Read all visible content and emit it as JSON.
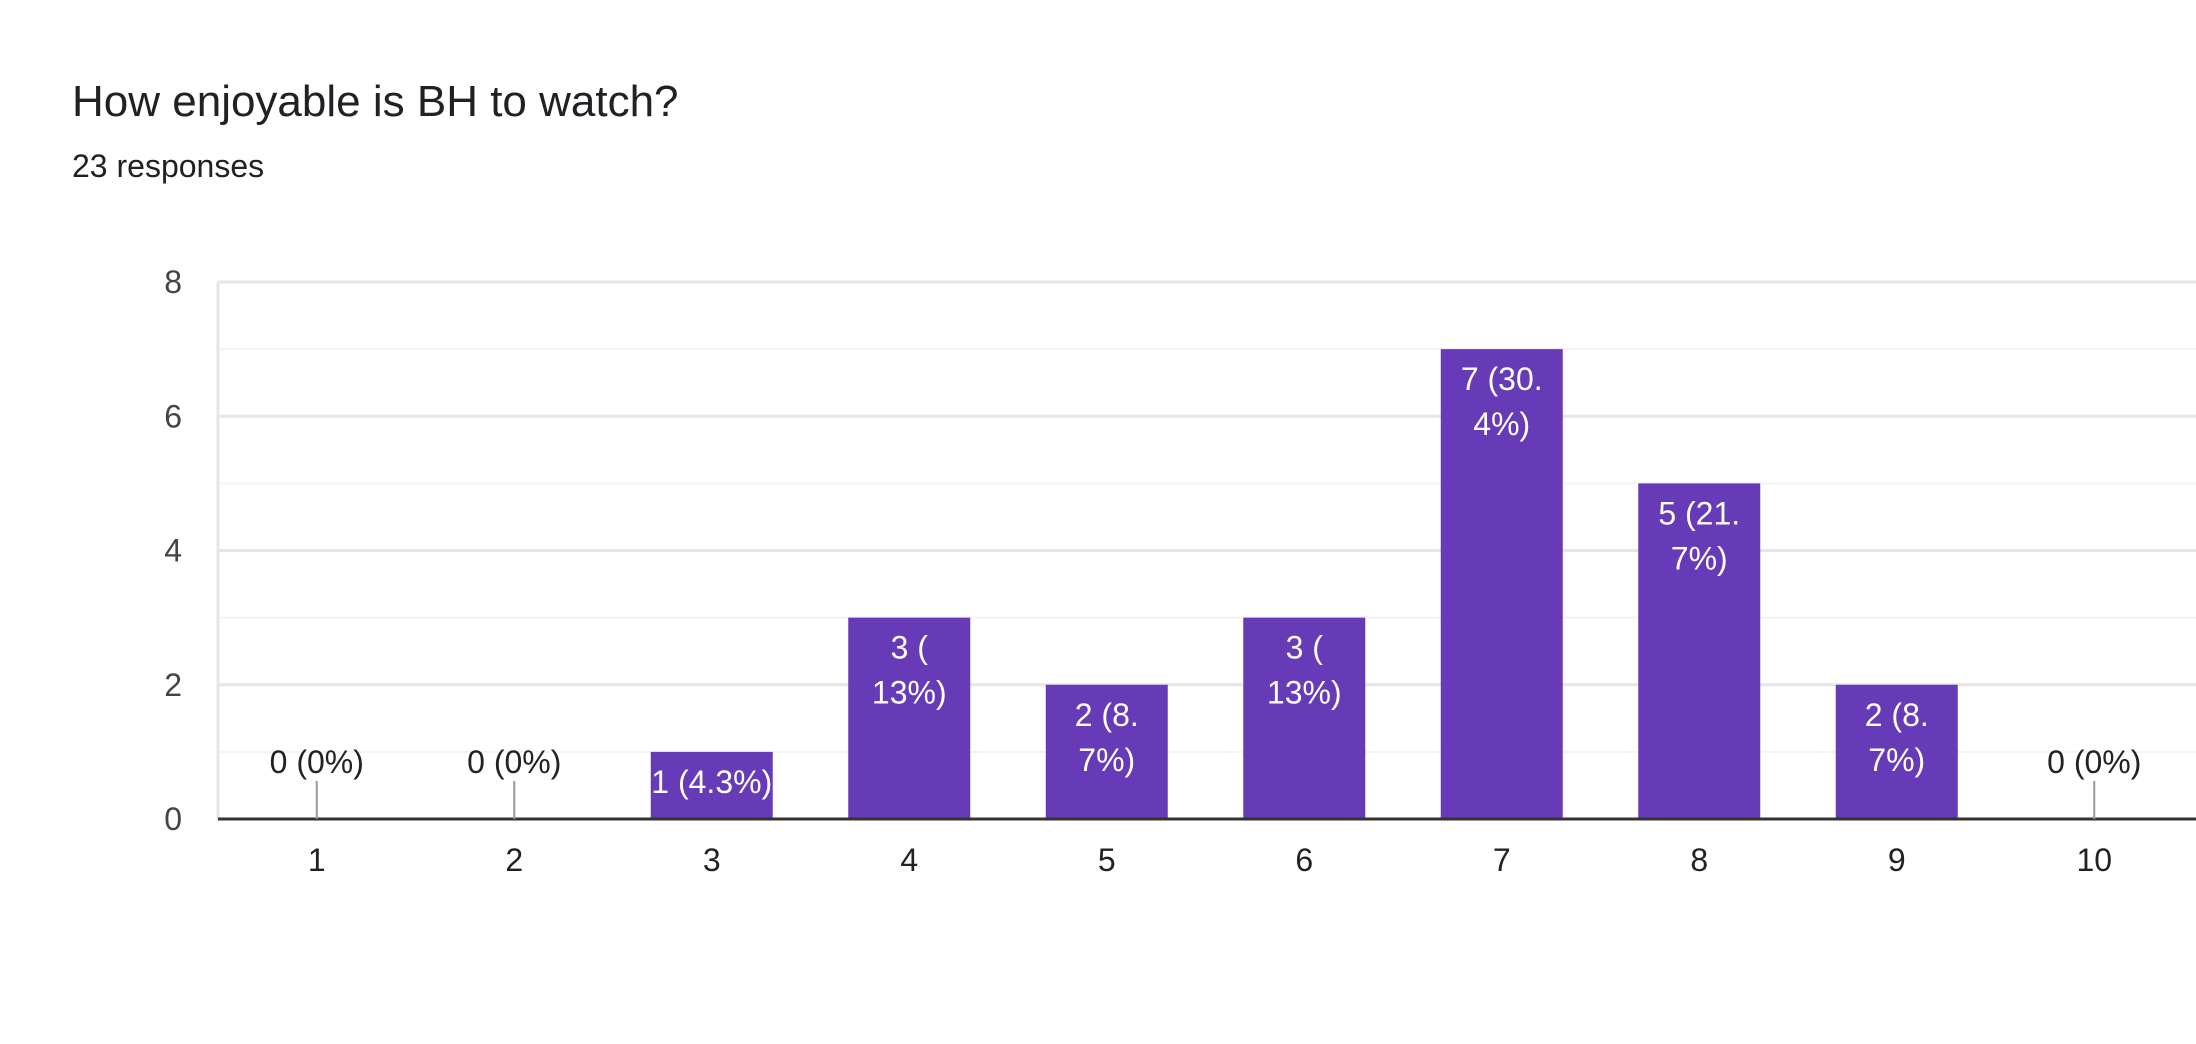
{
  "question": {
    "title": "How enjoyable is BH to watch?",
    "responses": "23 responses"
  },
  "colors": {
    "bar": "#673ab7",
    "gridline": "#e6e6e6",
    "minor_gridline": "#f3f3f3",
    "baseline": "#333333",
    "leader_line": "#999999"
  },
  "chart_data": {
    "type": "bar",
    "title": "How enjoyable is BH to watch?",
    "subtitle": "23 responses",
    "xlabel": "",
    "ylabel": "",
    "categories": [
      "1",
      "2",
      "3",
      "4",
      "5",
      "6",
      "7",
      "8",
      "9",
      "10"
    ],
    "values": [
      0,
      0,
      1,
      3,
      2,
      3,
      7,
      5,
      2,
      0
    ],
    "data_labels": [
      [
        "0 (0%)"
      ],
      [
        "0 (0%)"
      ],
      [
        "1 (4.3%)"
      ],
      [
        "3 (",
        "13%)"
      ],
      [
        "2 (8.",
        "7%)"
      ],
      [
        "3 (",
        "13%)"
      ],
      [
        "7 (30.",
        "4%)"
      ],
      [
        "5 (21.",
        "7%)"
      ],
      [
        "2 (8.",
        "7%)"
      ],
      [
        "0 (0%)"
      ]
    ],
    "yticks": [
      "0",
      "2",
      "4",
      "6",
      "8"
    ],
    "ylim": [
      0,
      8
    ],
    "grid": true,
    "legend": "none"
  }
}
